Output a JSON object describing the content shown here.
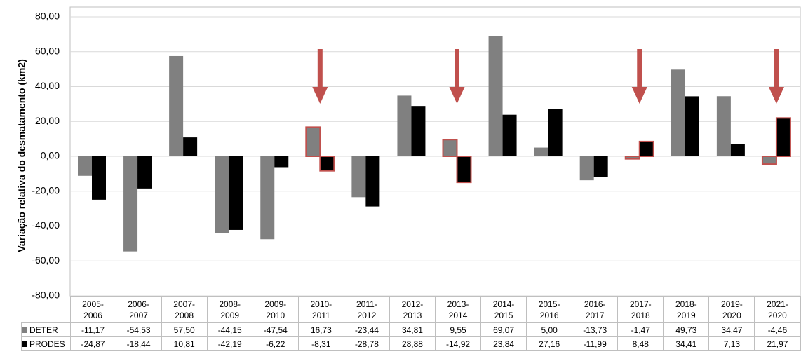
{
  "chart_data": {
    "type": "bar",
    "y_label": "Variação relativa do desmatamento (km2)",
    "categories": [
      "2005-2006",
      "2006-2007",
      "2007-2008",
      "2008-2009",
      "2009-2010",
      "2010-2011",
      "2011-2012",
      "2012-2013",
      "2013-2014",
      "2014-2015",
      "2015-2016",
      "2016-2017",
      "2017-2018",
      "2018-2019",
      "2019-2020",
      "2021-2020"
    ],
    "series": [
      {
        "name": "DETER",
        "color": "#808080",
        "values": [
          -11.17,
          -54.53,
          57.5,
          -44.15,
          -47.54,
          16.73,
          -23.44,
          34.81,
          9.55,
          69.07,
          5.0,
          -13.73,
          -1.47,
          49.73,
          34.47,
          -4.46
        ],
        "value_labels": [
          "-11,17",
          "-54,53",
          "57,50",
          "-44,15",
          "-47,54",
          "16,73",
          "-23,44",
          "34,81",
          "9,55",
          "69,07",
          "5,00",
          "-13,73",
          "-1,47",
          "49,73",
          "34,47",
          "-4,46"
        ]
      },
      {
        "name": "PRODES",
        "color": "#000000",
        "values": [
          -24.87,
          -18.44,
          10.81,
          -42.19,
          -6.22,
          -8.31,
          -28.78,
          28.88,
          -14.92,
          23.84,
          27.16,
          -11.99,
          8.48,
          34.41,
          7.13,
          21.97
        ],
        "value_labels": [
          "-24,87",
          "-18,44",
          "10,81",
          "-42,19",
          "-6,22",
          "-8,31",
          "-28,78",
          "28,88",
          "-14,92",
          "23,84",
          "27,16",
          "-11,99",
          "8,48",
          "34,41",
          "7,13",
          "21,97"
        ]
      }
    ],
    "ylim": [
      -80,
      80
    ],
    "yticks": [
      {
        "value": -80,
        "label": "-80,00"
      },
      {
        "value": -60,
        "label": "-60,00"
      },
      {
        "value": -40,
        "label": "-40,00"
      },
      {
        "value": -20,
        "label": "-20,00"
      },
      {
        "value": 0,
        "label": "0,00"
      },
      {
        "value": 20,
        "label": "20,00"
      },
      {
        "value": 40,
        "label": "40,00"
      },
      {
        "value": 60,
        "label": "60,00"
      },
      {
        "value": 80,
        "label": "80,00"
      }
    ],
    "grid": true,
    "highlighted": [
      5,
      8,
      12,
      15
    ],
    "highlight_color": "#c0504d"
  }
}
